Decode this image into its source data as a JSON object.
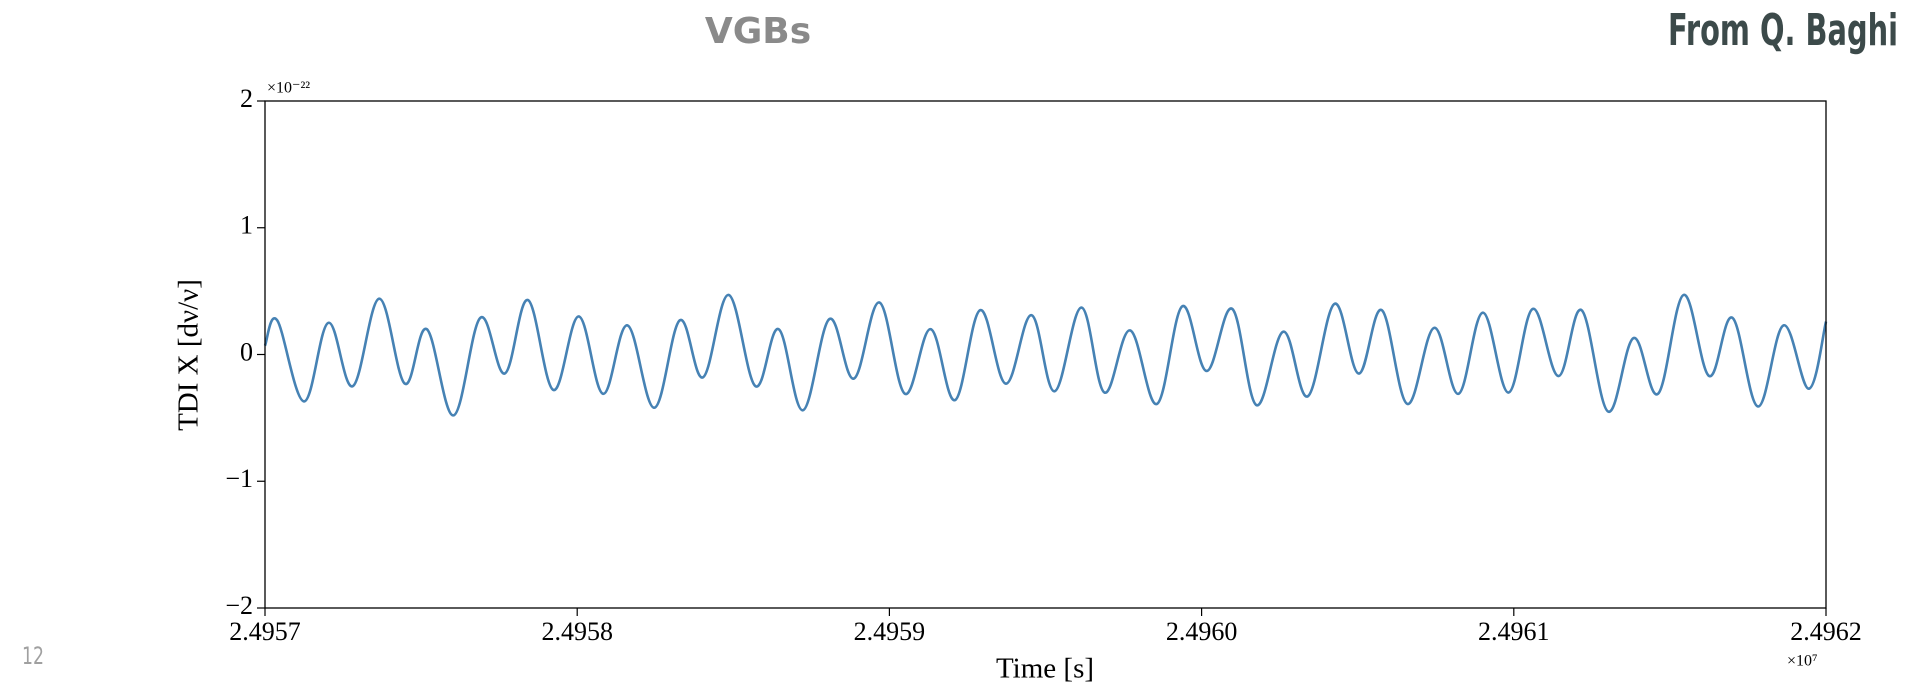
{
  "slide_title": "VGBs",
  "credit": "From Q. Baghi",
  "page_number": "12",
  "chart_data": {
    "type": "line",
    "xlabel": "Time [s]",
    "ylabel": "TDI X [dν/ν]",
    "x_offset_label": "×10⁷",
    "y_offset_label": "×10⁻²²",
    "xlim": [
      2.4957,
      2.4962
    ],
    "xticks": [
      {
        "value": 2.4957,
        "label": "2.4957"
      },
      {
        "value": 2.4958,
        "label": "2.4958"
      },
      {
        "value": 2.4959,
        "label": "2.4959"
      },
      {
        "value": 2.496,
        "label": "2.4960"
      },
      {
        "value": 2.4961,
        "label": "2.4961"
      },
      {
        "value": 2.4962,
        "label": "2.4962"
      }
    ],
    "ylim": [
      -2,
      2
    ],
    "yticks": [
      {
        "value": -2,
        "label": "−2"
      },
      {
        "value": -1,
        "label": "−1"
      },
      0,
      1,
      2
    ],
    "grid": false,
    "series": [
      {
        "color": "#4682b4",
        "x": [
          2.4957,
          2.4957039,
          2.4957125,
          2.4957203,
          2.4957281,
          2.4957366,
          2.4957448,
          2.4957518,
          2.4957604,
          2.495769,
          2.4957768,
          2.4957842,
          2.4957924,
          2.4958005,
          2.4958083,
          2.4958161,
          2.4958247,
          2.4958329,
          2.4958403,
          2.4958485,
          2.4958571,
          2.4958645,
          2.4958723,
          2.4958808,
          2.4958886,
          2.4958968,
          2.495905,
          2.4959132,
          2.495921,
          2.4959291,
          2.4959373,
          2.4959455,
          2.4959529,
          2.4959615,
          2.4959689,
          2.4959771,
          2.4959857,
          2.4959938,
          2.4960016,
          2.4960098,
          2.4960176,
          2.4960262,
          2.496034,
          2.4960426,
          2.4960503,
          2.4960577,
          2.4960659,
          2.4960745,
          2.4960823,
          2.4960901,
          2.4960983,
          2.4961061,
          2.4961143,
          2.4961217,
          2.4961302,
          2.4961384,
          2.4961462,
          2.4961544,
          2.4961626,
          2.49617,
          2.4961782,
          2.4961864,
          2.4961945,
          2.4962
        ],
        "values": [
          0.07,
          0.27,
          -0.37,
          0.25,
          -0.25,
          0.44,
          -0.23,
          0.2,
          -0.48,
          0.29,
          -0.15,
          0.43,
          -0.28,
          0.3,
          -0.31,
          0.23,
          -0.42,
          0.27,
          -0.18,
          0.47,
          -0.25,
          0.2,
          -0.44,
          0.28,
          -0.19,
          0.41,
          -0.31,
          0.2,
          -0.36,
          0.35,
          -0.23,
          0.31,
          -0.29,
          0.37,
          -0.3,
          0.19,
          -0.39,
          0.38,
          -0.13,
          0.36,
          -0.4,
          0.18,
          -0.33,
          0.4,
          -0.15,
          0.35,
          -0.39,
          0.21,
          -0.31,
          0.33,
          -0.3,
          0.36,
          -0.17,
          0.35,
          -0.45,
          0.13,
          -0.31,
          0.47,
          -0.17,
          0.29,
          -0.41,
          0.23,
          -0.27,
          0.26
        ]
      }
    ]
  }
}
